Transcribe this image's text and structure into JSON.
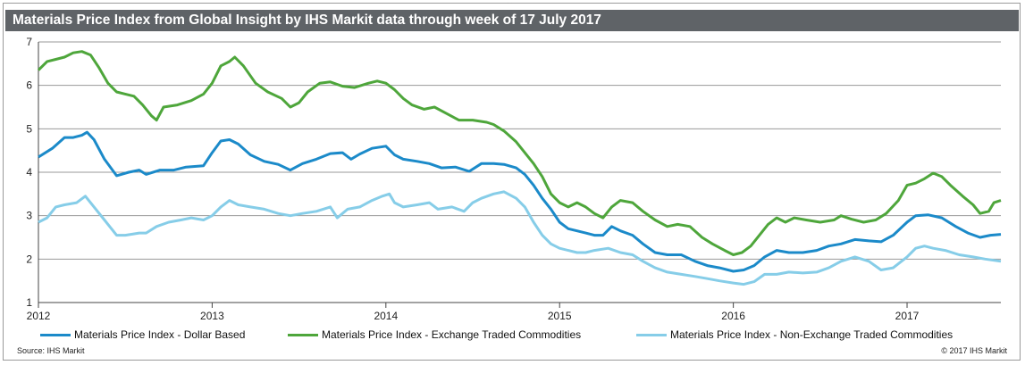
{
  "title": "Materials Price Index from Global Insight by IHS Markit data through week of 17 July 2017",
  "source": "Source:  IHS Markit",
  "copyright": "© 2017  IHS Markit",
  "colors": {
    "titlebar": "#5f6367",
    "dollar": "#1b8ac9",
    "exchange": "#4ea63b",
    "nonexchange": "#86cde8",
    "grid": "#9a9a9a"
  },
  "chart_data": {
    "type": "line",
    "title": "Materials Price Index from Global Insight by IHS Markit data through week of 17 July 2017",
    "xlabel": "",
    "ylabel": "",
    "xlim": [
      2012.0,
      2017.54
    ],
    "ylim": [
      1,
      7
    ],
    "yticks": [
      1,
      2,
      3,
      4,
      5,
      6,
      7
    ],
    "xticks": [
      2012,
      2013,
      2014,
      2015,
      2016,
      2017
    ],
    "xtick_labels": [
      "2012",
      "2013",
      "2014",
      "2015",
      "2016",
      "2017"
    ],
    "grid": true,
    "legend_position": "bottom",
    "series": [
      {
        "name": "Materials Price Index - Dollar Based",
        "color": "#1b8ac9",
        "points": [
          [
            2012.0,
            4.35
          ],
          [
            2012.08,
            4.55
          ],
          [
            2012.15,
            4.8
          ],
          [
            2012.2,
            4.8
          ],
          [
            2012.25,
            4.85
          ],
          [
            2012.28,
            4.92
          ],
          [
            2012.32,
            4.75
          ],
          [
            2012.38,
            4.3
          ],
          [
            2012.45,
            3.92
          ],
          [
            2012.52,
            4.0
          ],
          [
            2012.58,
            4.05
          ],
          [
            2012.62,
            3.95
          ],
          [
            2012.7,
            4.05
          ],
          [
            2012.78,
            4.05
          ],
          [
            2012.85,
            4.12
          ],
          [
            2012.95,
            4.15
          ],
          [
            2013.0,
            4.45
          ],
          [
            2013.05,
            4.72
          ],
          [
            2013.1,
            4.75
          ],
          [
            2013.15,
            4.65
          ],
          [
            2013.22,
            4.4
          ],
          [
            2013.3,
            4.25
          ],
          [
            2013.38,
            4.18
          ],
          [
            2013.45,
            4.05
          ],
          [
            2013.52,
            4.2
          ],
          [
            2013.6,
            4.3
          ],
          [
            2013.68,
            4.43
          ],
          [
            2013.75,
            4.45
          ],
          [
            2013.8,
            4.3
          ],
          [
            2013.85,
            4.42
          ],
          [
            2013.92,
            4.55
          ],
          [
            2014.0,
            4.6
          ],
          [
            2014.05,
            4.4
          ],
          [
            2014.1,
            4.3
          ],
          [
            2014.18,
            4.25
          ],
          [
            2014.25,
            4.2
          ],
          [
            2014.32,
            4.1
          ],
          [
            2014.4,
            4.12
          ],
          [
            2014.48,
            4.02
          ],
          [
            2014.55,
            4.2
          ],
          [
            2014.62,
            4.2
          ],
          [
            2014.68,
            4.18
          ],
          [
            2014.75,
            4.1
          ],
          [
            2014.8,
            3.95
          ],
          [
            2014.85,
            3.7
          ],
          [
            2014.9,
            3.4
          ],
          [
            2014.95,
            3.15
          ],
          [
            2015.0,
            2.85
          ],
          [
            2015.05,
            2.7
          ],
          [
            2015.1,
            2.65
          ],
          [
            2015.15,
            2.6
          ],
          [
            2015.2,
            2.55
          ],
          [
            2015.25,
            2.55
          ],
          [
            2015.3,
            2.75
          ],
          [
            2015.35,
            2.65
          ],
          [
            2015.42,
            2.55
          ],
          [
            2015.48,
            2.35
          ],
          [
            2015.55,
            2.15
          ],
          [
            2015.62,
            2.1
          ],
          [
            2015.7,
            2.1
          ],
          [
            2015.78,
            1.95
          ],
          [
            2015.85,
            1.85
          ],
          [
            2015.92,
            1.8
          ],
          [
            2016.0,
            1.72
          ],
          [
            2016.06,
            1.75
          ],
          [
            2016.12,
            1.85
          ],
          [
            2016.18,
            2.05
          ],
          [
            2016.25,
            2.2
          ],
          [
            2016.32,
            2.15
          ],
          [
            2016.4,
            2.15
          ],
          [
            2016.48,
            2.2
          ],
          [
            2016.55,
            2.3
          ],
          [
            2016.62,
            2.35
          ],
          [
            2016.7,
            2.45
          ],
          [
            2016.78,
            2.42
          ],
          [
            2016.85,
            2.4
          ],
          [
            2016.92,
            2.55
          ],
          [
            2017.0,
            2.85
          ],
          [
            2017.05,
            3.0
          ],
          [
            2017.12,
            3.02
          ],
          [
            2017.2,
            2.95
          ],
          [
            2017.28,
            2.75
          ],
          [
            2017.35,
            2.6
          ],
          [
            2017.42,
            2.5
          ],
          [
            2017.48,
            2.55
          ],
          [
            2017.54,
            2.57
          ]
        ]
      },
      {
        "name": "Materials Price Index - Exchange Traded Commodities",
        "color": "#4ea63b",
        "points": [
          [
            2012.0,
            6.35
          ],
          [
            2012.05,
            6.55
          ],
          [
            2012.1,
            6.6
          ],
          [
            2012.15,
            6.65
          ],
          [
            2012.2,
            6.75
          ],
          [
            2012.25,
            6.78
          ],
          [
            2012.3,
            6.7
          ],
          [
            2012.35,
            6.4
          ],
          [
            2012.4,
            6.05
          ],
          [
            2012.45,
            5.85
          ],
          [
            2012.5,
            5.8
          ],
          [
            2012.55,
            5.75
          ],
          [
            2012.6,
            5.55
          ],
          [
            2012.65,
            5.3
          ],
          [
            2012.68,
            5.2
          ],
          [
            2012.72,
            5.5
          ],
          [
            2012.8,
            5.55
          ],
          [
            2012.88,
            5.65
          ],
          [
            2012.95,
            5.8
          ],
          [
            2013.0,
            6.05
          ],
          [
            2013.05,
            6.45
          ],
          [
            2013.1,
            6.55
          ],
          [
            2013.13,
            6.65
          ],
          [
            2013.18,
            6.45
          ],
          [
            2013.25,
            6.05
          ],
          [
            2013.32,
            5.85
          ],
          [
            2013.4,
            5.7
          ],
          [
            2013.45,
            5.5
          ],
          [
            2013.5,
            5.6
          ],
          [
            2013.55,
            5.85
          ],
          [
            2013.62,
            6.05
          ],
          [
            2013.68,
            6.08
          ],
          [
            2013.75,
            5.98
          ],
          [
            2013.82,
            5.95
          ],
          [
            2013.9,
            6.05
          ],
          [
            2013.95,
            6.1
          ],
          [
            2014.0,
            6.05
          ],
          [
            2014.05,
            5.9
          ],
          [
            2014.1,
            5.7
          ],
          [
            2014.15,
            5.55
          ],
          [
            2014.22,
            5.45
          ],
          [
            2014.28,
            5.5
          ],
          [
            2014.35,
            5.35
          ],
          [
            2014.42,
            5.2
          ],
          [
            2014.5,
            5.2
          ],
          [
            2014.58,
            5.15
          ],
          [
            2014.62,
            5.1
          ],
          [
            2014.68,
            4.95
          ],
          [
            2014.75,
            4.7
          ],
          [
            2014.8,
            4.45
          ],
          [
            2014.85,
            4.2
          ],
          [
            2014.9,
            3.9
          ],
          [
            2014.95,
            3.5
          ],
          [
            2015.0,
            3.3
          ],
          [
            2015.05,
            3.2
          ],
          [
            2015.1,
            3.3
          ],
          [
            2015.15,
            3.2
          ],
          [
            2015.2,
            3.05
          ],
          [
            2015.25,
            2.95
          ],
          [
            2015.3,
            3.2
          ],
          [
            2015.35,
            3.35
          ],
          [
            2015.42,
            3.3
          ],
          [
            2015.48,
            3.1
          ],
          [
            2015.55,
            2.9
          ],
          [
            2015.62,
            2.75
          ],
          [
            2015.68,
            2.8
          ],
          [
            2015.75,
            2.75
          ],
          [
            2015.82,
            2.5
          ],
          [
            2015.88,
            2.35
          ],
          [
            2015.95,
            2.2
          ],
          [
            2016.0,
            2.1
          ],
          [
            2016.05,
            2.15
          ],
          [
            2016.1,
            2.3
          ],
          [
            2016.15,
            2.55
          ],
          [
            2016.2,
            2.8
          ],
          [
            2016.25,
            2.95
          ],
          [
            2016.3,
            2.85
          ],
          [
            2016.35,
            2.95
          ],
          [
            2016.42,
            2.9
          ],
          [
            2016.5,
            2.85
          ],
          [
            2016.58,
            2.9
          ],
          [
            2016.62,
            3.0
          ],
          [
            2016.68,
            2.92
          ],
          [
            2016.75,
            2.85
          ],
          [
            2016.82,
            2.9
          ],
          [
            2016.88,
            3.05
          ],
          [
            2016.95,
            3.35
          ],
          [
            2017.0,
            3.7
          ],
          [
            2017.05,
            3.75
          ],
          [
            2017.1,
            3.85
          ],
          [
            2017.15,
            3.98
          ],
          [
            2017.2,
            3.9
          ],
          [
            2017.25,
            3.7
          ],
          [
            2017.32,
            3.45
          ],
          [
            2017.38,
            3.25
          ],
          [
            2017.42,
            3.05
          ],
          [
            2017.47,
            3.1
          ],
          [
            2017.5,
            3.3
          ],
          [
            2017.54,
            3.35
          ]
        ]
      },
      {
        "name": "Materials Price Index - Non-Exchange Traded Commodities",
        "color": "#86cde8",
        "points": [
          [
            2012.0,
            2.85
          ],
          [
            2012.05,
            2.95
          ],
          [
            2012.1,
            3.2
          ],
          [
            2012.15,
            3.25
          ],
          [
            2012.22,
            3.3
          ],
          [
            2012.27,
            3.45
          ],
          [
            2012.32,
            3.2
          ],
          [
            2012.38,
            2.9
          ],
          [
            2012.45,
            2.55
          ],
          [
            2012.5,
            2.55
          ],
          [
            2012.58,
            2.6
          ],
          [
            2012.62,
            2.6
          ],
          [
            2012.68,
            2.75
          ],
          [
            2012.75,
            2.85
          ],
          [
            2012.82,
            2.9
          ],
          [
            2012.88,
            2.95
          ],
          [
            2012.95,
            2.9
          ],
          [
            2013.0,
            3.0
          ],
          [
            2013.05,
            3.2
          ],
          [
            2013.1,
            3.35
          ],
          [
            2013.15,
            3.25
          ],
          [
            2013.22,
            3.2
          ],
          [
            2013.3,
            3.15
          ],
          [
            2013.38,
            3.05
          ],
          [
            2013.45,
            3.0
          ],
          [
            2013.52,
            3.05
          ],
          [
            2013.6,
            3.1
          ],
          [
            2013.68,
            3.2
          ],
          [
            2013.72,
            2.95
          ],
          [
            2013.78,
            3.15
          ],
          [
            2013.85,
            3.2
          ],
          [
            2013.92,
            3.35
          ],
          [
            2013.98,
            3.45
          ],
          [
            2014.02,
            3.5
          ],
          [
            2014.05,
            3.3
          ],
          [
            2014.1,
            3.2
          ],
          [
            2014.18,
            3.25
          ],
          [
            2014.25,
            3.3
          ],
          [
            2014.3,
            3.15
          ],
          [
            2014.38,
            3.2
          ],
          [
            2014.45,
            3.1
          ],
          [
            2014.5,
            3.3
          ],
          [
            2014.55,
            3.4
          ],
          [
            2014.62,
            3.5
          ],
          [
            2014.68,
            3.55
          ],
          [
            2014.75,
            3.4
          ],
          [
            2014.8,
            3.2
          ],
          [
            2014.85,
            2.85
          ],
          [
            2014.9,
            2.55
          ],
          [
            2014.95,
            2.35
          ],
          [
            2015.0,
            2.25
          ],
          [
            2015.05,
            2.2
          ],
          [
            2015.1,
            2.15
          ],
          [
            2015.15,
            2.15
          ],
          [
            2015.2,
            2.2
          ],
          [
            2015.28,
            2.25
          ],
          [
            2015.35,
            2.15
          ],
          [
            2015.42,
            2.1
          ],
          [
            2015.48,
            1.95
          ],
          [
            2015.55,
            1.8
          ],
          [
            2015.62,
            1.7
          ],
          [
            2015.7,
            1.65
          ],
          [
            2015.78,
            1.6
          ],
          [
            2015.85,
            1.55
          ],
          [
            2015.92,
            1.5
          ],
          [
            2016.0,
            1.45
          ],
          [
            2016.06,
            1.42
          ],
          [
            2016.12,
            1.48
          ],
          [
            2016.18,
            1.65
          ],
          [
            2016.25,
            1.65
          ],
          [
            2016.32,
            1.7
          ],
          [
            2016.4,
            1.68
          ],
          [
            2016.48,
            1.7
          ],
          [
            2016.55,
            1.8
          ],
          [
            2016.62,
            1.95
          ],
          [
            2016.7,
            2.05
          ],
          [
            2016.78,
            1.95
          ],
          [
            2016.85,
            1.75
          ],
          [
            2016.92,
            1.8
          ],
          [
            2017.0,
            2.05
          ],
          [
            2017.05,
            2.25
          ],
          [
            2017.1,
            2.3
          ],
          [
            2017.15,
            2.25
          ],
          [
            2017.22,
            2.2
          ],
          [
            2017.3,
            2.1
          ],
          [
            2017.38,
            2.05
          ],
          [
            2017.45,
            2.0
          ],
          [
            2017.54,
            1.95
          ]
        ]
      }
    ]
  }
}
